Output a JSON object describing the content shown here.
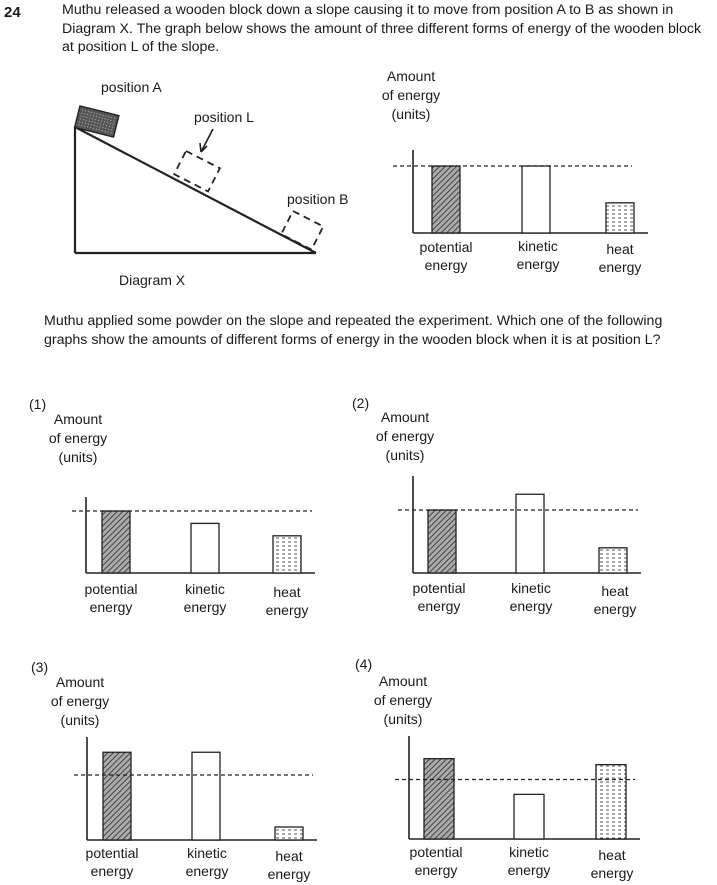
{
  "question": {
    "number": "24",
    "stem": "Muthu released a wooden block down a slope causing it to move from position A to B as shown in Diagram X. The graph below shows the amount of three different forms of energy of the wooden block at position L of the slope.",
    "followup": "Muthu applied some powder on the slope and repeated the experiment. Which one of the following graphs show the amounts of different forms of energy in the wooden block when it is at position L?"
  },
  "diagram": {
    "position_a": "position A",
    "position_l": "position L",
    "position_b": "position B",
    "caption": "Diagram X"
  },
  "axis_label": [
    "Amount",
    "of energy",
    "(units)"
  ],
  "bar_labels": [
    "potential\nenergy",
    "kinetic\nenergy",
    "heat\nenergy"
  ],
  "chart_data": [
    {
      "id": "reference",
      "type": "bar",
      "categories": [
        "potential energy",
        "kinetic energy",
        "heat energy"
      ],
      "values": [
        100,
        100,
        45
      ],
      "reference_line": 100,
      "ylabel": "Amount of energy (units)",
      "fills": [
        "hatched",
        "white",
        "dotted"
      ]
    },
    {
      "id": "option-1",
      "option_label": "(1)",
      "type": "bar",
      "categories": [
        "potential energy",
        "kinetic energy",
        "heat energy"
      ],
      "values": [
        100,
        80,
        60
      ],
      "reference_line": 100,
      "ylabel": "Amount of energy (units)",
      "fills": [
        "hatched",
        "white",
        "dotted"
      ]
    },
    {
      "id": "option-2",
      "option_label": "(2)",
      "type": "bar",
      "categories": [
        "potential energy",
        "kinetic energy",
        "heat energy"
      ],
      "values": [
        100,
        125,
        40
      ],
      "reference_line": 100,
      "ylabel": "Amount of energy (units)",
      "fills": [
        "hatched",
        "white",
        "dotted"
      ]
    },
    {
      "id": "option-3",
      "option_label": "(3)",
      "type": "bar",
      "categories": [
        "potential energy",
        "kinetic energy",
        "heat energy"
      ],
      "values": [
        135,
        135,
        20
      ],
      "reference_line": 100,
      "ylabel": "Amount of energy (units)",
      "fills": [
        "hatched",
        "white",
        "dotted"
      ]
    },
    {
      "id": "option-4",
      "option_label": "(4)",
      "type": "bar",
      "categories": [
        "potential energy",
        "kinetic energy",
        "heat energy"
      ],
      "values": [
        135,
        75,
        125
      ],
      "reference_line": 100,
      "ylabel": "Amount of energy (units)",
      "fills": [
        "hatched",
        "white",
        "dotted"
      ]
    }
  ]
}
